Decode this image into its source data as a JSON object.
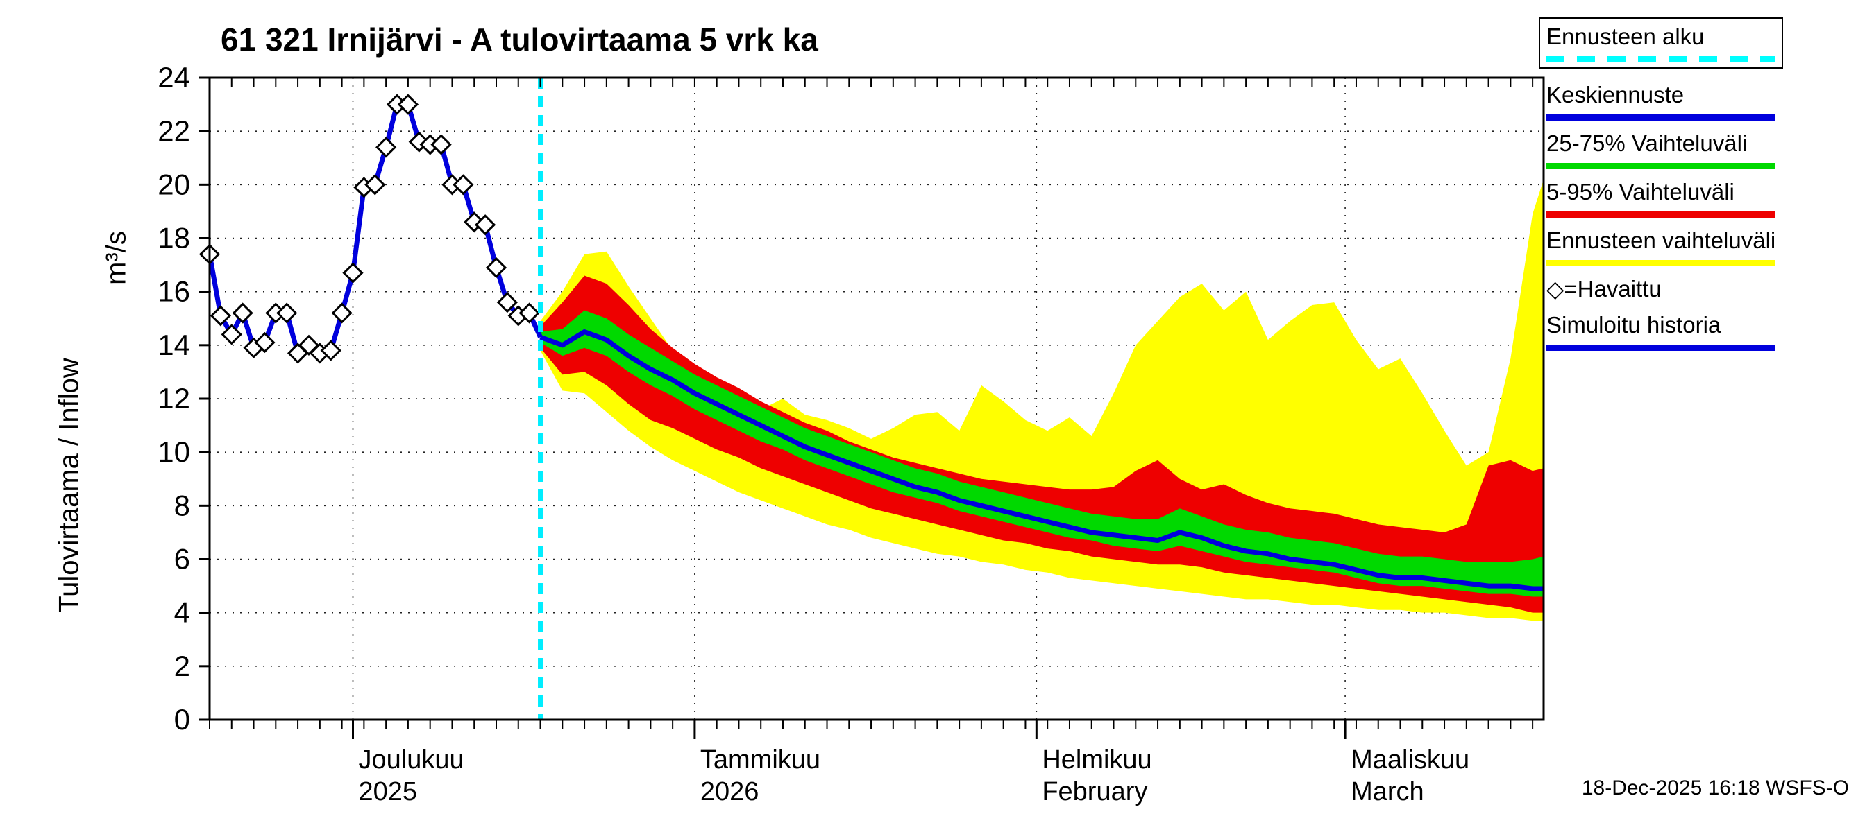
{
  "header": {
    "title": "61 321 Irnijärvi - A tulovirtaama 5 vrk ka"
  },
  "footer": {
    "timestamp": "18-Dec-2025 16:18 WSFS-O"
  },
  "legend": {
    "items": [
      {
        "label": "Ennusteen alku",
        "color": "#00ffff",
        "style": "dashed",
        "boxed": true
      },
      {
        "label": "Keskiennuste",
        "color": "#0000dd",
        "style": "solid"
      },
      {
        "label": "25-75% Vaihteluväli",
        "color": "#00d900",
        "style": "solid"
      },
      {
        "label": "5-95% Vaihteluväli",
        "color": "#ee0000",
        "style": "solid"
      },
      {
        "label": "Ennusteen vaihteluväli",
        "color": "#ffff00",
        "style": "solid"
      },
      {
        "label": "◇=Havaittu",
        "style": "marker"
      },
      {
        "label": "Simuloitu historia",
        "color": "#0000dd",
        "style": "solid"
      }
    ]
  },
  "chart_data": {
    "type": "line",
    "title": "61 321 Irnijärvi - A tulovirtaama 5 vrk ka",
    "ylabel": "Tulovirtaama / Inflow",
    "ylabel_units": "m³/s",
    "ylim": [
      0,
      24
    ],
    "yticks": [
      0,
      2,
      4,
      6,
      8,
      10,
      12,
      14,
      16,
      18,
      20,
      22,
      24
    ],
    "x_range_days": [
      -30,
      91
    ],
    "forecast_start_day": 0,
    "forecast_start_date": "18-Dec-2025",
    "months": [
      {
        "label": "Joulukuu",
        "sublabel": "2025",
        "day": -17
      },
      {
        "label": "Tammikuu",
        "sublabel": "2026",
        "day": 14
      },
      {
        "label": "Helmikuu",
        "sublabel": "February",
        "day": 45
      },
      {
        "label": "Maaliskuu",
        "sublabel": "March",
        "day": 73
      }
    ],
    "colors": {
      "median": "#0000dd",
      "history": "#0000dd",
      "band_25_75": "#00d900",
      "band_5_95": "#ee0000",
      "band_minmax": "#ffff00",
      "forecast_start": "#00eeff"
    },
    "history": {
      "marker": "diamond",
      "days": [
        -30,
        -29,
        -28,
        -27,
        -26,
        -25,
        -24,
        -23,
        -22,
        -21,
        -20,
        -19,
        -18,
        -17,
        -16,
        -15,
        -14,
        -13,
        -12,
        -11,
        -10,
        -9,
        -8,
        -7,
        -6,
        -5,
        -4,
        -3,
        -2,
        -1,
        0
      ],
      "values": [
        17.4,
        15.1,
        14.4,
        15.2,
        13.9,
        14.1,
        15.2,
        15.2,
        13.7,
        14.0,
        13.7,
        13.8,
        15.2,
        16.7,
        19.9,
        20.0,
        21.4,
        23.0,
        23.0,
        21.6,
        21.5,
        21.5,
        20.0,
        20.0,
        18.6,
        18.5,
        16.9,
        15.6,
        15.1,
        15.2,
        14.3
      ]
    },
    "forecast": {
      "days": [
        0,
        2,
        4,
        6,
        8,
        10,
        12,
        14,
        16,
        18,
        20,
        22,
        24,
        26,
        28,
        30,
        32,
        34,
        36,
        38,
        40,
        42,
        44,
        46,
        48,
        50,
        52,
        54,
        56,
        58,
        60,
        62,
        64,
        66,
        68,
        70,
        72,
        74,
        76,
        78,
        80,
        82,
        84,
        86,
        88,
        90,
        91
      ],
      "median": [
        14.3,
        14.0,
        14.5,
        14.2,
        13.6,
        13.1,
        12.7,
        12.2,
        11.8,
        11.4,
        11.0,
        10.6,
        10.2,
        9.9,
        9.6,
        9.3,
        9.0,
        8.7,
        8.5,
        8.2,
        8.0,
        7.8,
        7.6,
        7.4,
        7.2,
        7.0,
        6.9,
        6.8,
        6.7,
        7.0,
        6.8,
        6.5,
        6.3,
        6.2,
        6.0,
        5.9,
        5.8,
        5.6,
        5.4,
        5.3,
        5.3,
        5.2,
        5.1,
        5.0,
        5.0,
        4.9,
        4.9
      ],
      "p75": [
        14.5,
        14.6,
        15.3,
        15.0,
        14.4,
        13.9,
        13.4,
        12.9,
        12.5,
        12.1,
        11.7,
        11.3,
        10.9,
        10.6,
        10.3,
        10.0,
        9.7,
        9.4,
        9.2,
        8.9,
        8.7,
        8.5,
        8.3,
        8.1,
        7.9,
        7.7,
        7.6,
        7.5,
        7.5,
        7.9,
        7.6,
        7.3,
        7.1,
        7.0,
        6.8,
        6.7,
        6.6,
        6.4,
        6.2,
        6.1,
        6.1,
        6.0,
        5.9,
        5.9,
        5.9,
        6.0,
        6.1
      ],
      "p25": [
        14.1,
        13.6,
        13.9,
        13.6,
        13.0,
        12.5,
        12.1,
        11.6,
        11.2,
        10.8,
        10.4,
        10.1,
        9.7,
        9.4,
        9.1,
        8.8,
        8.5,
        8.3,
        8.1,
        7.8,
        7.6,
        7.4,
        7.2,
        7.0,
        6.8,
        6.7,
        6.5,
        6.4,
        6.3,
        6.5,
        6.3,
        6.1,
        5.9,
        5.8,
        5.7,
        5.6,
        5.5,
        5.3,
        5.1,
        5.0,
        5.0,
        4.9,
        4.8,
        4.7,
        4.7,
        4.6,
        4.6
      ],
      "p95": [
        14.7,
        15.6,
        16.6,
        16.3,
        15.5,
        14.6,
        13.9,
        13.3,
        12.8,
        12.4,
        11.9,
        11.5,
        11.1,
        10.8,
        10.4,
        10.1,
        9.8,
        9.6,
        9.4,
        9.2,
        9.0,
        8.9,
        8.8,
        8.7,
        8.6,
        8.6,
        8.7,
        9.3,
        9.7,
        9.0,
        8.6,
        8.8,
        8.4,
        8.1,
        7.9,
        7.8,
        7.7,
        7.5,
        7.3,
        7.2,
        7.1,
        7.0,
        7.3,
        9.5,
        9.7,
        9.3,
        9.4
      ],
      "p05": [
        13.9,
        12.9,
        13.0,
        12.5,
        11.8,
        11.2,
        10.9,
        10.5,
        10.1,
        9.8,
        9.4,
        9.1,
        8.8,
        8.5,
        8.2,
        7.9,
        7.7,
        7.5,
        7.3,
        7.1,
        6.9,
        6.7,
        6.6,
        6.4,
        6.3,
        6.1,
        6.0,
        5.9,
        5.8,
        5.8,
        5.7,
        5.5,
        5.4,
        5.3,
        5.2,
        5.1,
        5.0,
        4.9,
        4.8,
        4.7,
        4.6,
        4.5,
        4.4,
        4.3,
        4.2,
        4.0,
        4.0
      ],
      "max": [
        14.9,
        16.0,
        17.4,
        17.5,
        16.2,
        15.0,
        13.8,
        12.8,
        12.2,
        11.8,
        11.6,
        12.0,
        11.4,
        11.2,
        10.9,
        10.5,
        10.9,
        11.4,
        11.5,
        10.8,
        12.5,
        11.9,
        11.2,
        10.8,
        11.3,
        10.6,
        12.2,
        14.0,
        14.9,
        15.8,
        16.3,
        15.3,
        16.0,
        14.2,
        14.9,
        15.5,
        15.6,
        14.2,
        13.1,
        13.5,
        12.2,
        10.8,
        9.5,
        10.0,
        13.5,
        18.9,
        20.2
      ],
      "min": [
        13.8,
        12.3,
        12.2,
        11.5,
        10.8,
        10.2,
        9.7,
        9.3,
        8.9,
        8.5,
        8.2,
        7.9,
        7.6,
        7.3,
        7.1,
        6.8,
        6.6,
        6.4,
        6.2,
        6.1,
        5.9,
        5.8,
        5.6,
        5.5,
        5.3,
        5.2,
        5.1,
        5.0,
        4.9,
        4.8,
        4.7,
        4.6,
        4.5,
        4.5,
        4.4,
        4.3,
        4.3,
        4.2,
        4.1,
        4.1,
        4.0,
        4.0,
        3.9,
        3.8,
        3.8,
        3.7,
        3.7
      ]
    }
  }
}
